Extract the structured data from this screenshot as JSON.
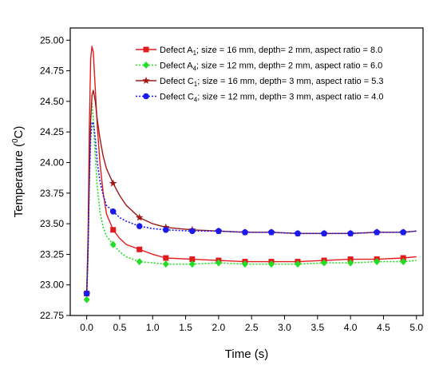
{
  "chart_data": {
    "type": "line",
    "xlabel": "Time (s)",
    "ylabel_parts": {
      "pre": "Temperature (",
      "sup": "0",
      "post": "C)"
    },
    "xlim": [
      -0.25,
      5.1
    ],
    "ylim": [
      22.75,
      25.1
    ],
    "x_ticks": [
      "0.0",
      "0.5",
      "1.0",
      "1.5",
      "2.0",
      "2.5",
      "3.0",
      "3.5",
      "4.0",
      "4.5",
      "5.0"
    ],
    "y_ticks": [
      "22.75",
      "23.00",
      "23.25",
      "23.50",
      "23.75",
      "24.00",
      "24.25",
      "24.50",
      "24.75",
      "25.00"
    ],
    "legend_position": "top-right",
    "series": [
      {
        "name_pre": "Defect A",
        "name_sub": "1",
        "name_post": "; size = 16 mm, depth= 2 mm, aspect ratio = 8.0",
        "color": "#e31a1c",
        "line": "solid",
        "marker": "square",
        "x": [
          0.0,
          0.02,
          0.04,
          0.06,
          0.08,
          0.1,
          0.13,
          0.16,
          0.2,
          0.25,
          0.3,
          0.4,
          0.5,
          0.6,
          0.8,
          1.0,
          1.2,
          1.6,
          2.0,
          2.4,
          2.8,
          3.2,
          3.6,
          4.0,
          4.4,
          4.8,
          5.0
        ],
        "y": [
          22.93,
          23.4,
          24.3,
          24.85,
          24.95,
          24.9,
          24.6,
          24.3,
          24.0,
          23.75,
          23.58,
          23.45,
          23.38,
          23.33,
          23.29,
          23.25,
          23.22,
          23.21,
          23.2,
          23.19,
          23.19,
          23.19,
          23.2,
          23.21,
          23.21,
          23.22,
          23.23
        ],
        "marker_x": [
          0.0,
          0.4,
          0.8,
          1.2,
          1.6,
          2.0,
          2.4,
          2.8,
          3.2,
          3.6,
          4.0,
          4.4,
          4.8
        ]
      },
      {
        "name_pre": "Defect A",
        "name_sub": "4",
        "name_post": "; size = 12 mm, depth= 2 mm, aspect ratio = 6.0",
        "color": "#22dd22",
        "line": "dotted",
        "marker": "diamond",
        "x": [
          0.0,
          0.02,
          0.04,
          0.06,
          0.08,
          0.1,
          0.13,
          0.16,
          0.2,
          0.25,
          0.3,
          0.4,
          0.5,
          0.6,
          0.8,
          1.0,
          1.2,
          1.6,
          2.0,
          2.4,
          2.8,
          3.2,
          3.6,
          4.0,
          4.4,
          4.8,
          5.0
        ],
        "y": [
          22.88,
          23.2,
          23.9,
          24.35,
          24.48,
          24.35,
          24.05,
          23.8,
          23.6,
          23.47,
          23.4,
          23.33,
          23.27,
          23.23,
          23.19,
          23.18,
          23.17,
          23.17,
          23.18,
          23.17,
          23.17,
          23.17,
          23.18,
          23.18,
          23.19,
          23.19,
          23.2
        ],
        "marker_x": [
          0.0,
          0.4,
          0.8,
          1.2,
          1.6,
          2.0,
          2.4,
          2.8,
          3.2,
          3.6,
          4.0,
          4.4,
          4.8
        ]
      },
      {
        "name_pre": "Defect C",
        "name_sub": "1",
        "name_post": "; size = 16 mm, depth= 3 mm, aspect ratio = 5.3",
        "color": "#a01818",
        "line": "solid",
        "marker": "star",
        "x": [
          0.0,
          0.02,
          0.04,
          0.06,
          0.08,
          0.1,
          0.13,
          0.16,
          0.2,
          0.25,
          0.3,
          0.4,
          0.5,
          0.6,
          0.8,
          1.0,
          1.2,
          1.6,
          2.0,
          2.4,
          2.8,
          3.2,
          3.6,
          4.0,
          4.4,
          4.8,
          5.0
        ],
        "y": [
          22.93,
          23.3,
          23.9,
          24.35,
          24.55,
          24.59,
          24.5,
          24.35,
          24.2,
          24.05,
          23.95,
          23.83,
          23.73,
          23.65,
          23.55,
          23.5,
          23.47,
          23.45,
          23.44,
          23.43,
          23.43,
          23.42,
          23.42,
          23.42,
          23.43,
          23.43,
          23.44
        ],
        "marker_x": [
          0.0,
          0.4,
          0.8,
          1.2,
          1.6,
          2.0,
          2.4,
          2.8,
          3.2,
          3.6,
          4.0,
          4.4,
          4.8
        ]
      },
      {
        "name_pre": "Defect C",
        "name_sub": "4",
        "name_post": "; size = 12 mm,  depth= 3 mm, aspect ratio = 4.0",
        "color": "#1a1aee",
        "line": "dotted",
        "marker": "circle",
        "x": [
          0.0,
          0.02,
          0.04,
          0.06,
          0.08,
          0.1,
          0.13,
          0.16,
          0.2,
          0.25,
          0.3,
          0.4,
          0.5,
          0.6,
          0.8,
          1.0,
          1.2,
          1.6,
          2.0,
          2.4,
          2.8,
          3.2,
          3.6,
          4.0,
          4.4,
          4.8,
          5.0
        ],
        "y": [
          22.93,
          23.3,
          23.85,
          24.2,
          24.32,
          24.33,
          24.2,
          24.0,
          23.85,
          23.73,
          23.65,
          23.6,
          23.55,
          23.52,
          23.48,
          23.46,
          23.45,
          23.44,
          23.44,
          23.43,
          23.43,
          23.42,
          23.42,
          23.42,
          23.43,
          23.43,
          23.44
        ],
        "marker_x": [
          0.0,
          0.4,
          0.8,
          1.2,
          1.6,
          2.0,
          2.4,
          2.8,
          3.2,
          3.6,
          4.0,
          4.4,
          4.8
        ]
      }
    ]
  }
}
